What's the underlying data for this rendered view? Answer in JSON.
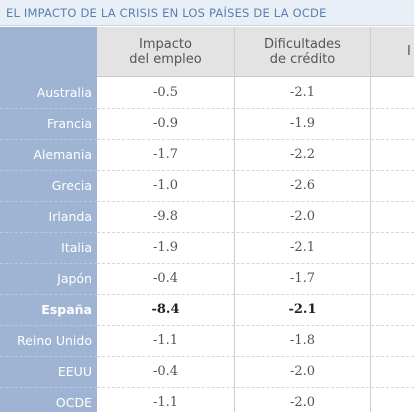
{
  "title": "EL IMPACTO DE LA CRISIS EN LOS PAÍSES DE LA OCDE",
  "columns": [
    {
      "label": "Impacto\ndel empleo"
    },
    {
      "label": "Dificultades\nde crédito"
    },
    {
      "label": "I"
    }
  ],
  "rows": [
    {
      "country": "Australia",
      "impacto": "-0.5",
      "credito": "-2.1",
      "bold": false
    },
    {
      "country": "Francia",
      "impacto": "-0.9",
      "credito": "-1.9",
      "bold": false
    },
    {
      "country": "Alemania",
      "impacto": "-1.7",
      "credito": "-2.2",
      "bold": false
    },
    {
      "country": "Grecia",
      "impacto": "-1.0",
      "credito": "-2.6",
      "bold": false
    },
    {
      "country": "Irlanda",
      "impacto": "-9.8",
      "credito": "-2.0",
      "bold": false
    },
    {
      "country": "Italia",
      "impacto": "-1.9",
      "credito": "-2.1",
      "bold": false
    },
    {
      "country": "Japón",
      "impacto": "-0.4",
      "credito": "-1.7",
      "bold": false
    },
    {
      "country": "España",
      "impacto": "-8.4",
      "credito": "-2.1",
      "bold": true
    },
    {
      "country": "Reino Unido",
      "impacto": "-1.1",
      "credito": "-1.8",
      "bold": false
    },
    {
      "country": "EEUU",
      "impacto": "-0.4",
      "credito": "-2.0",
      "bold": false
    },
    {
      "country": "OCDE",
      "impacto": "-1.1",
      "credito": "-2.0",
      "bold": false
    }
  ],
  "colors": {
    "title": "#5a7fb3",
    "row_header_bg": "#9fb4d2",
    "column_header_bg": "#e3e3e3"
  }
}
